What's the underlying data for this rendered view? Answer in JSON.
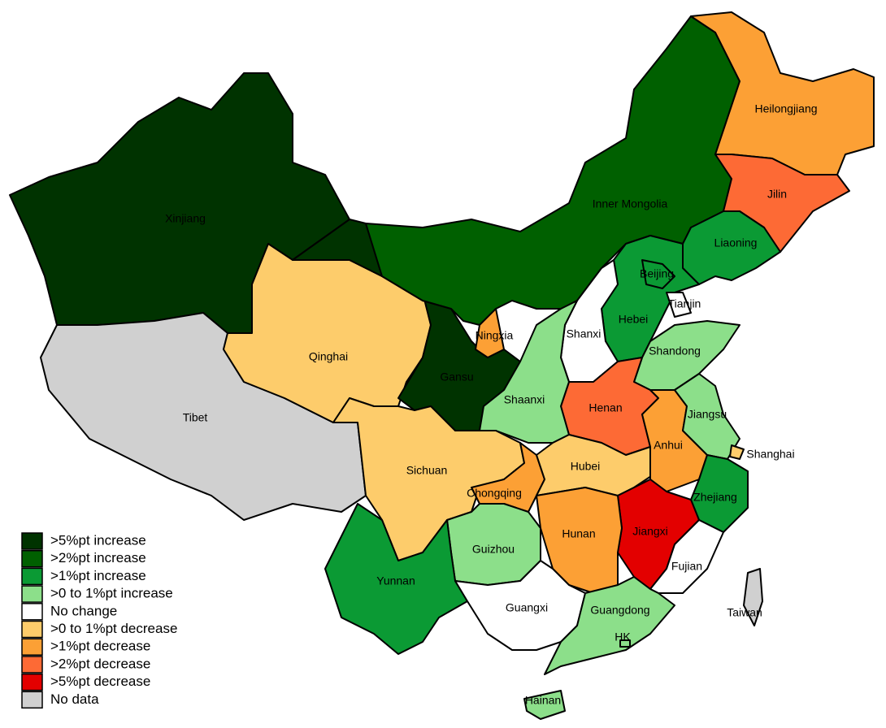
{
  "regions": [
    {
      "name": "Xinjiang",
      "color": "#003300"
    },
    {
      "name": "Tibet",
      "color": "#d0d0d0"
    },
    {
      "name": "Qinghai",
      "color": "#fdcc6b"
    },
    {
      "name": "Gansu",
      "color": "#003300"
    },
    {
      "name": "Inner Mongolia",
      "color": "#006000"
    },
    {
      "name": "Heilongjiang",
      "color": "#fca035"
    },
    {
      "name": "Jilin",
      "color": "#fd6a35"
    },
    {
      "name": "Liaoning",
      "color": "#0b9a34"
    },
    {
      "name": "Hebei",
      "color": "#0b9a34"
    },
    {
      "name": "Beijing",
      "color": "#0b9a34"
    },
    {
      "name": "Tianjin",
      "color": "#ffffff"
    },
    {
      "name": "Shanxi",
      "color": "#ffffff"
    },
    {
      "name": "Shandong",
      "color": "#8cdf8a"
    },
    {
      "name": "Henan",
      "color": "#fd6a35"
    },
    {
      "name": "Shaanxi",
      "color": "#8cdf8a"
    },
    {
      "name": "Ningxia",
      "color": "#fca035"
    },
    {
      "name": "Sichuan",
      "color": "#fdcc6b"
    },
    {
      "name": "Chongqing",
      "color": "#fca035"
    },
    {
      "name": "Hubei",
      "color": "#fdcc6b"
    },
    {
      "name": "Anhui",
      "color": "#fca035"
    },
    {
      "name": "Jiangsu",
      "color": "#8cdf8a"
    },
    {
      "name": "Shanghai",
      "color": "#fdcc6b"
    },
    {
      "name": "Zhejiang",
      "color": "#0b9a34"
    },
    {
      "name": "Jiangxi",
      "color": "#e30000"
    },
    {
      "name": "Fujian",
      "color": "#ffffff"
    },
    {
      "name": "Hunan",
      "color": "#fca035"
    },
    {
      "name": "Guizhou",
      "color": "#8cdf8a"
    },
    {
      "name": "Yunnan",
      "color": "#0b9a34"
    },
    {
      "name": "Guangxi",
      "color": "#ffffff"
    },
    {
      "name": "Guangdong",
      "color": "#8cdf8a"
    },
    {
      "name": "Hainan",
      "color": "#8cdf8a"
    },
    {
      "name": "Taiwan",
      "color": "#d0d0d0"
    },
    {
      "name": "HK",
      "color": "#8cdf8a"
    }
  ],
  "legend": {
    "items": [
      {
        "label": ">5%pt increase",
        "color": "#003300"
      },
      {
        "label": ">2%pt increase",
        "color": "#006000"
      },
      {
        "label": ">1%pt increase",
        "color": "#0b9a34"
      },
      {
        "label": ">0 to 1%pt increase",
        "color": "#8cdf8a"
      },
      {
        "label": "No change",
        "color": "#ffffff"
      },
      {
        "label": ">0 to 1%pt decrease",
        "color": "#fdcc6b"
      },
      {
        "label": ">1%pt decrease",
        "color": "#fca035"
      },
      {
        "label": ">2%pt decrease",
        "color": "#fd6a35"
      },
      {
        "label": ">5%pt decrease",
        "color": "#e30000"
      },
      {
        "label": "No data",
        "color": "#d0d0d0"
      }
    ]
  }
}
